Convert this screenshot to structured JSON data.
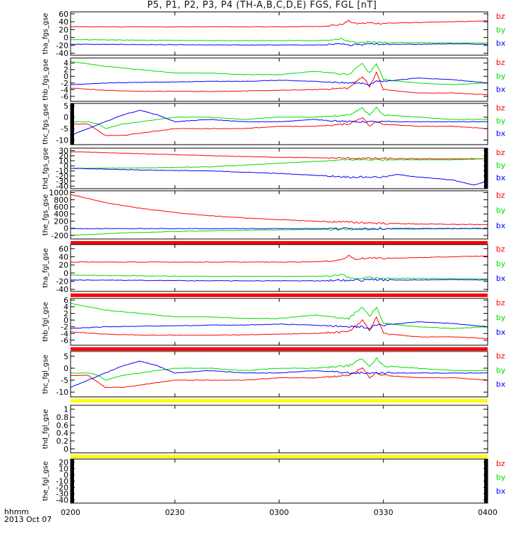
{
  "title": "P5, P1, P2, P3, P4 (TH-A,B,C,D,E) FGS, FGL [nT]",
  "footer": {
    "hhmm": "hhmm",
    "date": "2013 Oct 07"
  },
  "x_axis": {
    "ticks": [
      "0200",
      "0230",
      "0300",
      "0330",
      "0400"
    ],
    "range_minutes": [
      0,
      120
    ]
  },
  "colors": {
    "bx": "#0000ff",
    "by": "#00dd00",
    "bz": "#ff0000",
    "bar_red": "#ff0000",
    "bar_yellow": "#ffff00",
    "fill_black": "#000000"
  },
  "chart_data": [
    {
      "type": "line",
      "ylabel": "tha_fgs_gse",
      "ylim": [
        -45,
        65
      ],
      "yticks": [
        60,
        40,
        20,
        0,
        -20,
        -40
      ],
      "series": [
        {
          "name": "bz",
          "color": "#ff0000",
          "x": [
            0,
            20,
            40,
            60,
            72,
            78,
            80,
            82,
            84,
            86,
            88,
            90,
            100,
            110,
            120
          ],
          "y": [
            27,
            27,
            27,
            27,
            28,
            33,
            42,
            35,
            36,
            37,
            36,
            36,
            38,
            40,
            42
          ]
        },
        {
          "name": "by",
          "color": "#00dd00",
          "x": [
            0,
            20,
            40,
            60,
            72,
            78,
            80,
            82,
            84,
            86,
            90,
            100,
            110,
            120
          ],
          "y": [
            -5,
            -7,
            -8,
            -8,
            -8,
            -4,
            -10,
            -14,
            -12,
            -10,
            -13,
            -13,
            -14,
            -14
          ]
        },
        {
          "name": "bx",
          "color": "#0000ff",
          "x": [
            0,
            20,
            40,
            60,
            72,
            78,
            80,
            82,
            84,
            86,
            90,
            100,
            110,
            120
          ],
          "y": [
            -17,
            -18,
            -19,
            -19,
            -19,
            -17,
            -20,
            -16,
            -18,
            -15,
            -17,
            -17,
            -16,
            -17
          ]
        }
      ],
      "bottom_bar": null,
      "left_fill": false,
      "right_fill": false
    },
    {
      "type": "line",
      "ylabel": "thb_fgs_gse",
      "ylim": [
        -7.5,
        5.5
      ],
      "yticks": [
        4,
        2,
        0,
        -2,
        -4,
        -6
      ],
      "series": [
        {
          "name": "bz",
          "color": "#ff0000",
          "x": [
            0,
            10,
            20,
            30,
            40,
            50,
            60,
            70,
            80,
            84,
            86,
            88,
            90,
            100,
            110,
            120
          ],
          "y": [
            -3.5,
            -4.2,
            -4.5,
            -4.5,
            -4.5,
            -4.4,
            -4.2,
            -4,
            -3.5,
            0,
            -3,
            1,
            -4,
            -5,
            -5,
            -5.5
          ]
        },
        {
          "name": "by",
          "color": "#00dd00",
          "x": [
            0,
            10,
            20,
            30,
            40,
            50,
            60,
            70,
            80,
            84,
            86,
            88,
            90,
            100,
            110,
            120
          ],
          "y": [
            4.5,
            3,
            2,
            1,
            1,
            0.5,
            0.5,
            1.5,
            0.5,
            4,
            1,
            4,
            -1,
            -2,
            -2.5,
            -2
          ]
        },
        {
          "name": "bx",
          "color": "#0000ff",
          "x": [
            0,
            10,
            20,
            30,
            40,
            50,
            60,
            70,
            80,
            84,
            86,
            88,
            90,
            100,
            110,
            120
          ],
          "y": [
            -2.5,
            -2,
            -1.8,
            -1.7,
            -1.5,
            -1.5,
            -1.2,
            -1.5,
            -2,
            -2,
            -2.5,
            -1.5,
            -1.5,
            -0.5,
            -1,
            -2
          ]
        }
      ],
      "bottom_bar": null,
      "left_fill": false,
      "right_fill": false
    },
    {
      "type": "line",
      "ylabel": "thc_fgs_gse",
      "ylim": [
        -12,
        6
      ],
      "yticks": [
        5,
        0,
        -5,
        -10
      ],
      "series": [
        {
          "name": "bz",
          "color": "#ff0000",
          "x": [
            0,
            5,
            8,
            10,
            15,
            20,
            25,
            30,
            40,
            50,
            60,
            70,
            80,
            84,
            86,
            88,
            90,
            100,
            110,
            120
          ],
          "y": [
            -3,
            -3,
            -6,
            -8,
            -8,
            -7,
            -6,
            -5,
            -5,
            -5,
            -4,
            -4,
            -3,
            0,
            -4,
            -2,
            -3,
            -4,
            -4,
            -5
          ]
        },
        {
          "name": "by",
          "color": "#00dd00",
          "x": [
            0,
            5,
            8,
            10,
            15,
            20,
            25,
            30,
            40,
            50,
            60,
            70,
            80,
            84,
            86,
            88,
            90,
            100,
            110,
            120
          ],
          "y": [
            -2,
            -2,
            -3,
            -5,
            -3,
            -2,
            -1,
            0,
            0,
            -1,
            0,
            0,
            1,
            4,
            1,
            4,
            1,
            0,
            -1,
            -1
          ]
        },
        {
          "name": "bx",
          "color": "#0000ff",
          "x": [
            0,
            5,
            10,
            15,
            20,
            25,
            30,
            40,
            50,
            60,
            70,
            80,
            84,
            86,
            88,
            90,
            100,
            110,
            120
          ],
          "y": [
            -8,
            -5,
            -2,
            1,
            3,
            1,
            -2,
            -1,
            -2,
            -2,
            -1,
            -2,
            -2,
            -2,
            -2,
            -2,
            -2,
            -2,
            -2
          ]
        }
      ],
      "bottom_bar": null,
      "left_fill": true,
      "right_fill": false
    },
    {
      "type": "line",
      "ylabel": "thd_fgs_gse",
      "ylim": [
        -45,
        35
      ],
      "yticks": [
        30,
        20,
        10,
        0,
        -10,
        -20,
        -30,
        -40
      ],
      "series": [
        {
          "name": "bz",
          "color": "#ff0000",
          "x": [
            0,
            20,
            40,
            60,
            80,
            100,
            110,
            120
          ],
          "y": [
            28,
            24,
            20,
            17,
            15,
            14,
            14,
            14
          ]
        },
        {
          "name": "by",
          "color": "#00dd00",
          "x": [
            0,
            20,
            40,
            60,
            80,
            100,
            110,
            120
          ],
          "y": [
            -5,
            -4,
            -2,
            5,
            12,
            12,
            12,
            14
          ]
        },
        {
          "name": "bx",
          "color": "#0000ff",
          "x": [
            0,
            20,
            40,
            60,
            80,
            90,
            94,
            100,
            110,
            116,
            120
          ],
          "y": [
            -5,
            -8,
            -10,
            -15,
            -22,
            -22,
            -17,
            -22,
            -28,
            -38,
            -30
          ]
        }
      ],
      "bottom_bar": null,
      "left_fill": false,
      "right_fill": true
    },
    {
      "type": "line",
      "ylabel": "the_fgs_gse",
      "ylim": [
        -300,
        1050
      ],
      "yticks": [
        1000,
        800,
        600,
        400,
        200,
        0,
        -200
      ],
      "series": [
        {
          "name": "bz",
          "color": "#ff0000",
          "x": [
            0,
            10,
            20,
            30,
            40,
            50,
            60,
            70,
            80,
            90,
            100,
            110,
            120
          ],
          "y": [
            950,
            720,
            560,
            440,
            350,
            290,
            240,
            200,
            170,
            140,
            120,
            110,
            100
          ]
        },
        {
          "name": "by",
          "color": "#00dd00",
          "x": [
            0,
            10,
            20,
            30,
            40,
            50,
            60,
            70,
            80,
            90,
            100,
            110,
            120
          ],
          "y": [
            -200,
            -150,
            -120,
            -90,
            -70,
            -55,
            -45,
            -35,
            -30,
            -25,
            -20,
            -15,
            -10
          ]
        },
        {
          "name": "bx",
          "color": "#0000ff",
          "x": [
            0,
            20,
            40,
            60,
            80,
            100,
            120
          ],
          "y": [
            -10,
            -10,
            -10,
            -10,
            -8,
            -8,
            -5
          ]
        }
      ],
      "bottom_bar": "red",
      "left_fill": false,
      "right_fill": false
    },
    {
      "type": "line",
      "ylabel": "tha_fgl_gse",
      "ylim": [
        -45,
        70
      ],
      "yticks": [
        60,
        40,
        20,
        0,
        -20,
        -40
      ],
      "series": [
        {
          "name": "bz",
          "color": "#ff0000",
          "x": [
            0,
            20,
            40,
            60,
            72,
            78,
            80,
            82,
            84,
            86,
            88,
            90,
            100,
            110,
            120
          ],
          "y": [
            27,
            27,
            27,
            27,
            28,
            33,
            42,
            35,
            36,
            37,
            36,
            36,
            38,
            40,
            42
          ]
        },
        {
          "name": "by",
          "color": "#00dd00",
          "x": [
            0,
            20,
            40,
            60,
            72,
            78,
            80,
            82,
            84,
            86,
            90,
            100,
            110,
            120
          ],
          "y": [
            -5,
            -7,
            -8,
            -8,
            -8,
            -4,
            -10,
            -14,
            -12,
            -10,
            -13,
            -13,
            -14,
            -14
          ]
        },
        {
          "name": "bx",
          "color": "#0000ff",
          "x": [
            0,
            20,
            40,
            60,
            72,
            78,
            80,
            82,
            84,
            86,
            90,
            100,
            110,
            120
          ],
          "y": [
            -17,
            -18,
            -19,
            -19,
            -19,
            -17,
            -20,
            -16,
            -18,
            -15,
            -17,
            -17,
            -16,
            -17
          ]
        }
      ],
      "bottom_bar": "red",
      "left_fill": false,
      "right_fill": false
    },
    {
      "type": "line",
      "ylabel": "thb_fgl_gse",
      "ylim": [
        -7.5,
        6.5
      ],
      "yticks": [
        6,
        4,
        2,
        0,
        -2,
        -4,
        -6
      ],
      "series": [
        {
          "name": "bz",
          "color": "#ff0000",
          "x": [
            0,
            10,
            20,
            30,
            40,
            50,
            60,
            70,
            80,
            84,
            86,
            88,
            90,
            100,
            110,
            120
          ],
          "y": [
            -3.5,
            -4.2,
            -4.5,
            -4.5,
            -4.5,
            -4.4,
            -4.2,
            -4,
            -3.5,
            0,
            -3,
            1,
            -4,
            -5,
            -5,
            -5.5
          ]
        },
        {
          "name": "by",
          "color": "#00dd00",
          "x": [
            0,
            10,
            20,
            30,
            40,
            50,
            60,
            70,
            80,
            84,
            86,
            88,
            90,
            100,
            110,
            120
          ],
          "y": [
            5,
            3,
            2,
            1,
            1,
            0.5,
            0.5,
            1.5,
            0.5,
            4,
            1,
            4,
            -1,
            -2,
            -2.5,
            -2
          ]
        },
        {
          "name": "bx",
          "color": "#0000ff",
          "x": [
            0,
            10,
            20,
            30,
            40,
            50,
            60,
            70,
            80,
            84,
            86,
            88,
            90,
            100,
            110,
            120
          ],
          "y": [
            -2.5,
            -2,
            -1.8,
            -1.7,
            -1.5,
            -1.5,
            -1.2,
            -1.5,
            -2,
            -2,
            -2.5,
            -1.5,
            -1.5,
            -0.5,
            -1,
            -2
          ]
        }
      ],
      "bottom_bar": "red",
      "left_fill": false,
      "right_fill": false
    },
    {
      "type": "line",
      "ylabel": "thc_fgl_gse",
      "ylim": [
        -12,
        7
      ],
      "yticks": [
        5,
        0,
        -5,
        -10
      ],
      "series": [
        {
          "name": "bz",
          "color": "#ff0000",
          "x": [
            0,
            5,
            8,
            10,
            15,
            20,
            25,
            30,
            40,
            50,
            60,
            70,
            80,
            84,
            86,
            88,
            90,
            100,
            110,
            120
          ],
          "y": [
            -3,
            -3,
            -6,
            -8,
            -8,
            -7,
            -6,
            -5,
            -5,
            -5,
            -4,
            -4,
            -3,
            0,
            -4,
            -2,
            -3,
            -4,
            -4,
            -5
          ]
        },
        {
          "name": "by",
          "color": "#00dd00",
          "x": [
            0,
            5,
            8,
            10,
            15,
            20,
            25,
            30,
            40,
            50,
            60,
            70,
            80,
            84,
            86,
            88,
            90,
            100,
            110,
            120
          ],
          "y": [
            -2,
            -2,
            -3,
            -5,
            -3,
            -2,
            -1,
            0,
            0,
            -1,
            0,
            0,
            1,
            4,
            1,
            4,
            1,
            0,
            -1,
            -1
          ]
        },
        {
          "name": "bx",
          "color": "#0000ff",
          "x": [
            0,
            5,
            10,
            15,
            20,
            25,
            30,
            40,
            50,
            60,
            70,
            80,
            84,
            86,
            88,
            90,
            100,
            110,
            120
          ],
          "y": [
            -8,
            -5,
            -2,
            1,
            3,
            1,
            -2,
            -1,
            -2,
            -2,
            -1,
            -2,
            -2,
            -2,
            -2,
            -2,
            -2,
            -2,
            -2
          ]
        }
      ],
      "bottom_bar": "yellow",
      "left_fill": false,
      "right_fill": false
    },
    {
      "type": "line",
      "ylabel": "thd_fgl_gse",
      "ylim": [
        -0.1,
        1.1
      ],
      "yticks": [
        1.0,
        0.8,
        0.6,
        0.4,
        0.2,
        0.0
      ],
      "series": [],
      "bottom_bar": "yellow",
      "left_fill": false,
      "right_fill": false
    },
    {
      "type": "line",
      "ylabel": "the_fgl_gse",
      "ylim": [
        -45,
        25
      ],
      "yticks": [
        20,
        10,
        0,
        -10,
        -20,
        -30,
        -40
      ],
      "series": [
        {
          "name": "bz",
          "color": "#ff0000",
          "x": [],
          "y": []
        },
        {
          "name": "by",
          "color": "#00dd00",
          "x": [],
          "y": []
        },
        {
          "name": "bx",
          "color": "#0000ff",
          "x": [],
          "y": []
        }
      ],
      "bottom_bar": null,
      "left_fill": true,
      "right_fill": true
    }
  ]
}
